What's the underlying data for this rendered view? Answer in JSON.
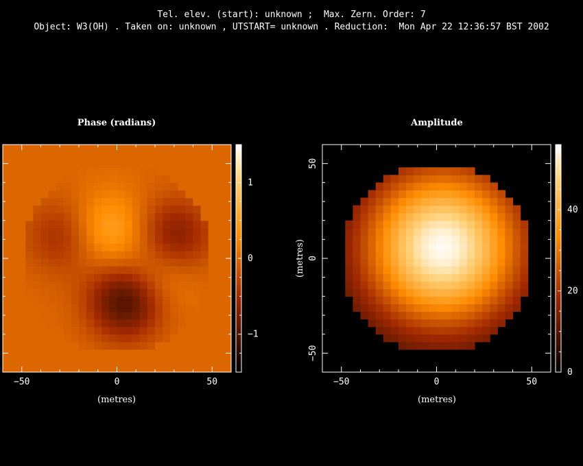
{
  "header": {
    "line1": "Tel. elev. (start): unknown ;  Max. Zern. Order: 7",
    "line2": "Object: W3(OH) . Taken on: unknown , UTSTART= unknown . Reduction:  Mon Apr 22 12:36:57 BST 2002"
  },
  "chart_data": [
    {
      "type": "heatmap",
      "title": "Phase (radians)",
      "xlabel": "(metres)",
      "ylabel": "",
      "xlim": [
        -60,
        60
      ],
      "ylim": [
        -60,
        60
      ],
      "x_ticks": [
        -50,
        0,
        50
      ],
      "y_ticks": [],
      "aperture_radius": 50,
      "colorbar": {
        "range": [
          -1.5,
          1.5
        ],
        "ticks": [
          1,
          0,
          -1
        ],
        "tick_labels": [
          "1",
          "0",
          "−1"
        ]
      },
      "features": [
        {
          "x": -5,
          "y": 15,
          "value": 0.6
        },
        {
          "x": 20,
          "y": -10,
          "value": 0.4
        },
        {
          "x": -28,
          "y": 12,
          "value": -0.5
        },
        {
          "x": 5,
          "y": -22,
          "value": -1.1
        },
        {
          "x": 30,
          "y": 12,
          "value": -0.7
        }
      ]
    },
    {
      "type": "heatmap",
      "title": "Amplitude",
      "xlabel": "(metres)",
      "ylabel": "(metres)",
      "xlim": [
        -60,
        60
      ],
      "ylim": [
        -60,
        60
      ],
      "x_ticks": [
        -50,
        0,
        50
      ],
      "y_ticks": [
        50,
        0,
        -50
      ],
      "aperture_radius": 50,
      "peak": {
        "x": 3,
        "y": 6,
        "value": 55
      },
      "colorbar": {
        "range": [
          0,
          56
        ],
        "ticks": [
          40,
          20,
          0
        ],
        "tick_labels": [
          "40",
          "20",
          "0"
        ]
      }
    }
  ],
  "icons": [
    "heat-colormap"
  ]
}
